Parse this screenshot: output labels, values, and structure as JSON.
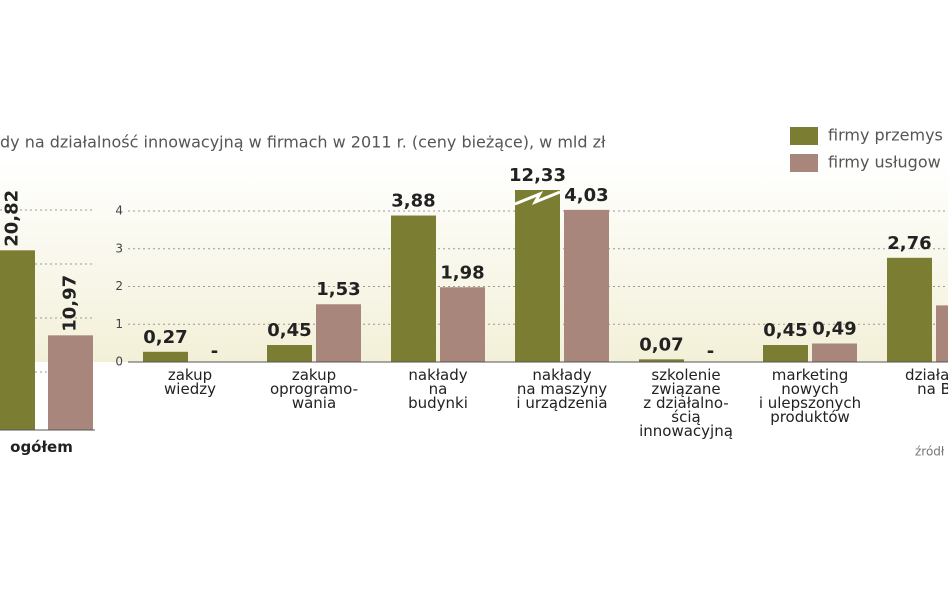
{
  "chart_data": [
    {
      "type": "bar",
      "categories": [
        "ogółem"
      ],
      "series": [
        {
          "color": "#7a7d32",
          "values": [
            20.82
          ],
          "value_labels": [
            "20,82"
          ]
        },
        {
          "color": "#a8867b",
          "values": [
            10.97
          ],
          "value_labels": [
            "10,97"
          ]
        }
      ],
      "ylim": [
        0,
        24
      ]
    },
    {
      "type": "bar",
      "title": "dy na działalność innowacyjną w firmach w 2011 r. (ceny bieżące), w mld zł",
      "categories": [
        "zakup\nwiedzy",
        "zakup\noprogramo-\nwania",
        "nakłady\nna\nbudynki",
        "nakłady\nna maszyny\ni urządzenia",
        "szkolenie\nzwiązane\nz działalno-\nścią\ninnowacyjną",
        "marketing\nnowych\ni ulepszonych\nproduktów",
        "działaln\nna B"
      ],
      "series": [
        {
          "name": "firmy przemys",
          "color": "#7a7d32",
          "values": [
            0.27,
            0.45,
            3.88,
            12.33,
            0.07,
            0.45,
            2.76
          ],
          "value_labels": [
            "0,27",
            "0,45",
            "3,88",
            "12,33",
            "0,07",
            "0,45",
            "2,76"
          ]
        },
        {
          "name": "firmy usługow",
          "color": "#a8867b",
          "values": [
            null,
            1.53,
            1.98,
            4.03,
            null,
            0.49,
            1.5
          ],
          "value_labels": [
            "-",
            "1,53",
            "1,98",
            "4,03",
            "-",
            "0,49",
            null
          ]
        }
      ],
      "ylim": [
        0,
        4.3
      ],
      "yticks": [
        0,
        1,
        2,
        3,
        4
      ],
      "grid": true,
      "source": "źródł"
    }
  ]
}
